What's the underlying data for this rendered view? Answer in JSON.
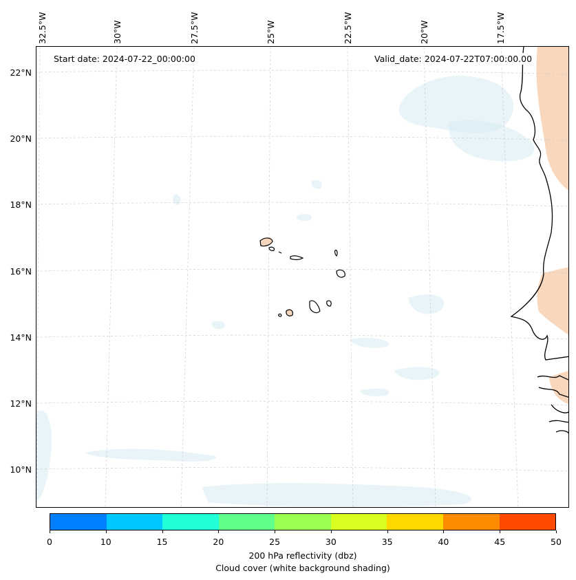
{
  "map": {
    "start_date": "Start date: 2024-07-22_00:00:00",
    "valid_date": "Valid_date: 2024-07-22T07:00:00.00",
    "longitude_labels": [
      "32.5°W",
      "30°W",
      "27.5°W",
      "25°W",
      "22.5°W",
      "20°W",
      "17.5°W"
    ],
    "latitude_labels": [
      "22°N",
      "20°N",
      "18°N",
      "16°N",
      "14°N",
      "12°N",
      "10°N"
    ],
    "colors": {
      "cloud": "#d6ebf2",
      "land_dust": "#f6c9a6",
      "coast": "#000000",
      "island_fill": "#f5d6bc",
      "grid": "#cccccc"
    }
  },
  "colorbar": {
    "ticks": [
      "0",
      "10",
      "15",
      "20",
      "25",
      "30",
      "35",
      "40",
      "45",
      "50"
    ],
    "colors": [
      "#0080ff",
      "#00c8ff",
      "#20ffd8",
      "#60ff8a",
      "#9aff50",
      "#d8ff20",
      "#ffd800",
      "#ff8c00",
      "#ff4a00"
    ],
    "title_line1": "200 hPa reflectivity (dbz)",
    "title_line2": "Cloud cover (white background shading)"
  }
}
